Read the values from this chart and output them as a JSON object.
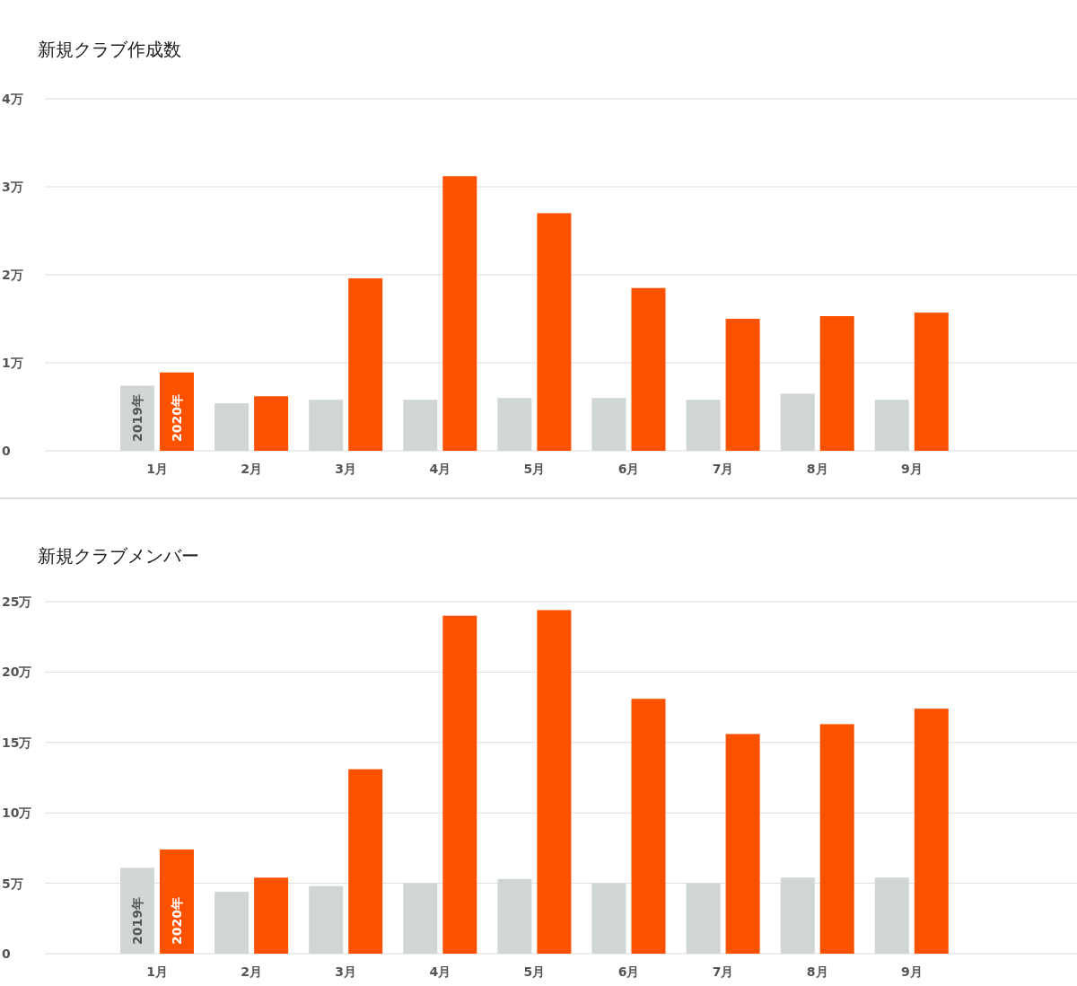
{
  "chart_data": [
    {
      "type": "bar",
      "title": "新規クラブ作成数",
      "categories": [
        "1月",
        "2月",
        "3月",
        "4月",
        "5月",
        "6月",
        "7月",
        "8月",
        "9月"
      ],
      "series": [
        {
          "name": "2019年",
          "color": "#d0d6d6",
          "values": [
            0.74,
            0.54,
            0.58,
            0.58,
            0.6,
            0.6,
            0.58,
            0.65,
            0.58
          ]
        },
        {
          "name": "2020年",
          "color": "#fc5200",
          "values": [
            0.89,
            0.62,
            1.96,
            3.12,
            2.7,
            1.85,
            1.5,
            1.53,
            1.57
          ]
        }
      ],
      "ylim": [
        0,
        4
      ],
      "yticks": [
        0,
        {
          "value": 1,
          "label": "1万"
        },
        {
          "value": 2,
          "label": "2万"
        },
        {
          "value": 3,
          "label": "3万"
        },
        {
          "value": 4,
          "label": "4万"
        }
      ],
      "grid": "y",
      "legend": false
    },
    {
      "type": "bar",
      "title": "新規クラブメンバー",
      "categories": [
        "1月",
        "2月",
        "3月",
        "4月",
        "5月",
        "6月",
        "7月",
        "8月",
        "9月"
      ],
      "series": [
        {
          "name": "2019年",
          "color": "#d0d6d6",
          "values": [
            6.1,
            4.4,
            4.8,
            5.0,
            5.3,
            5.0,
            5.0,
            5.4,
            5.4
          ]
        },
        {
          "name": "2020年",
          "color": "#fc5200",
          "values": [
            7.4,
            5.4,
            13.1,
            24.0,
            24.4,
            18.1,
            15.6,
            16.3,
            17.4
          ]
        }
      ],
      "ylim": [
        0,
        25
      ],
      "yticks": [
        0,
        {
          "value": 5,
          "label": "5万"
        },
        {
          "value": 10,
          "label": "10万"
        },
        {
          "value": 15,
          "label": "15万"
        },
        {
          "value": 20,
          "label": "20万"
        },
        {
          "value": 25,
          "label": "25万"
        }
      ],
      "grid": "y",
      "legend": false
    }
  ]
}
